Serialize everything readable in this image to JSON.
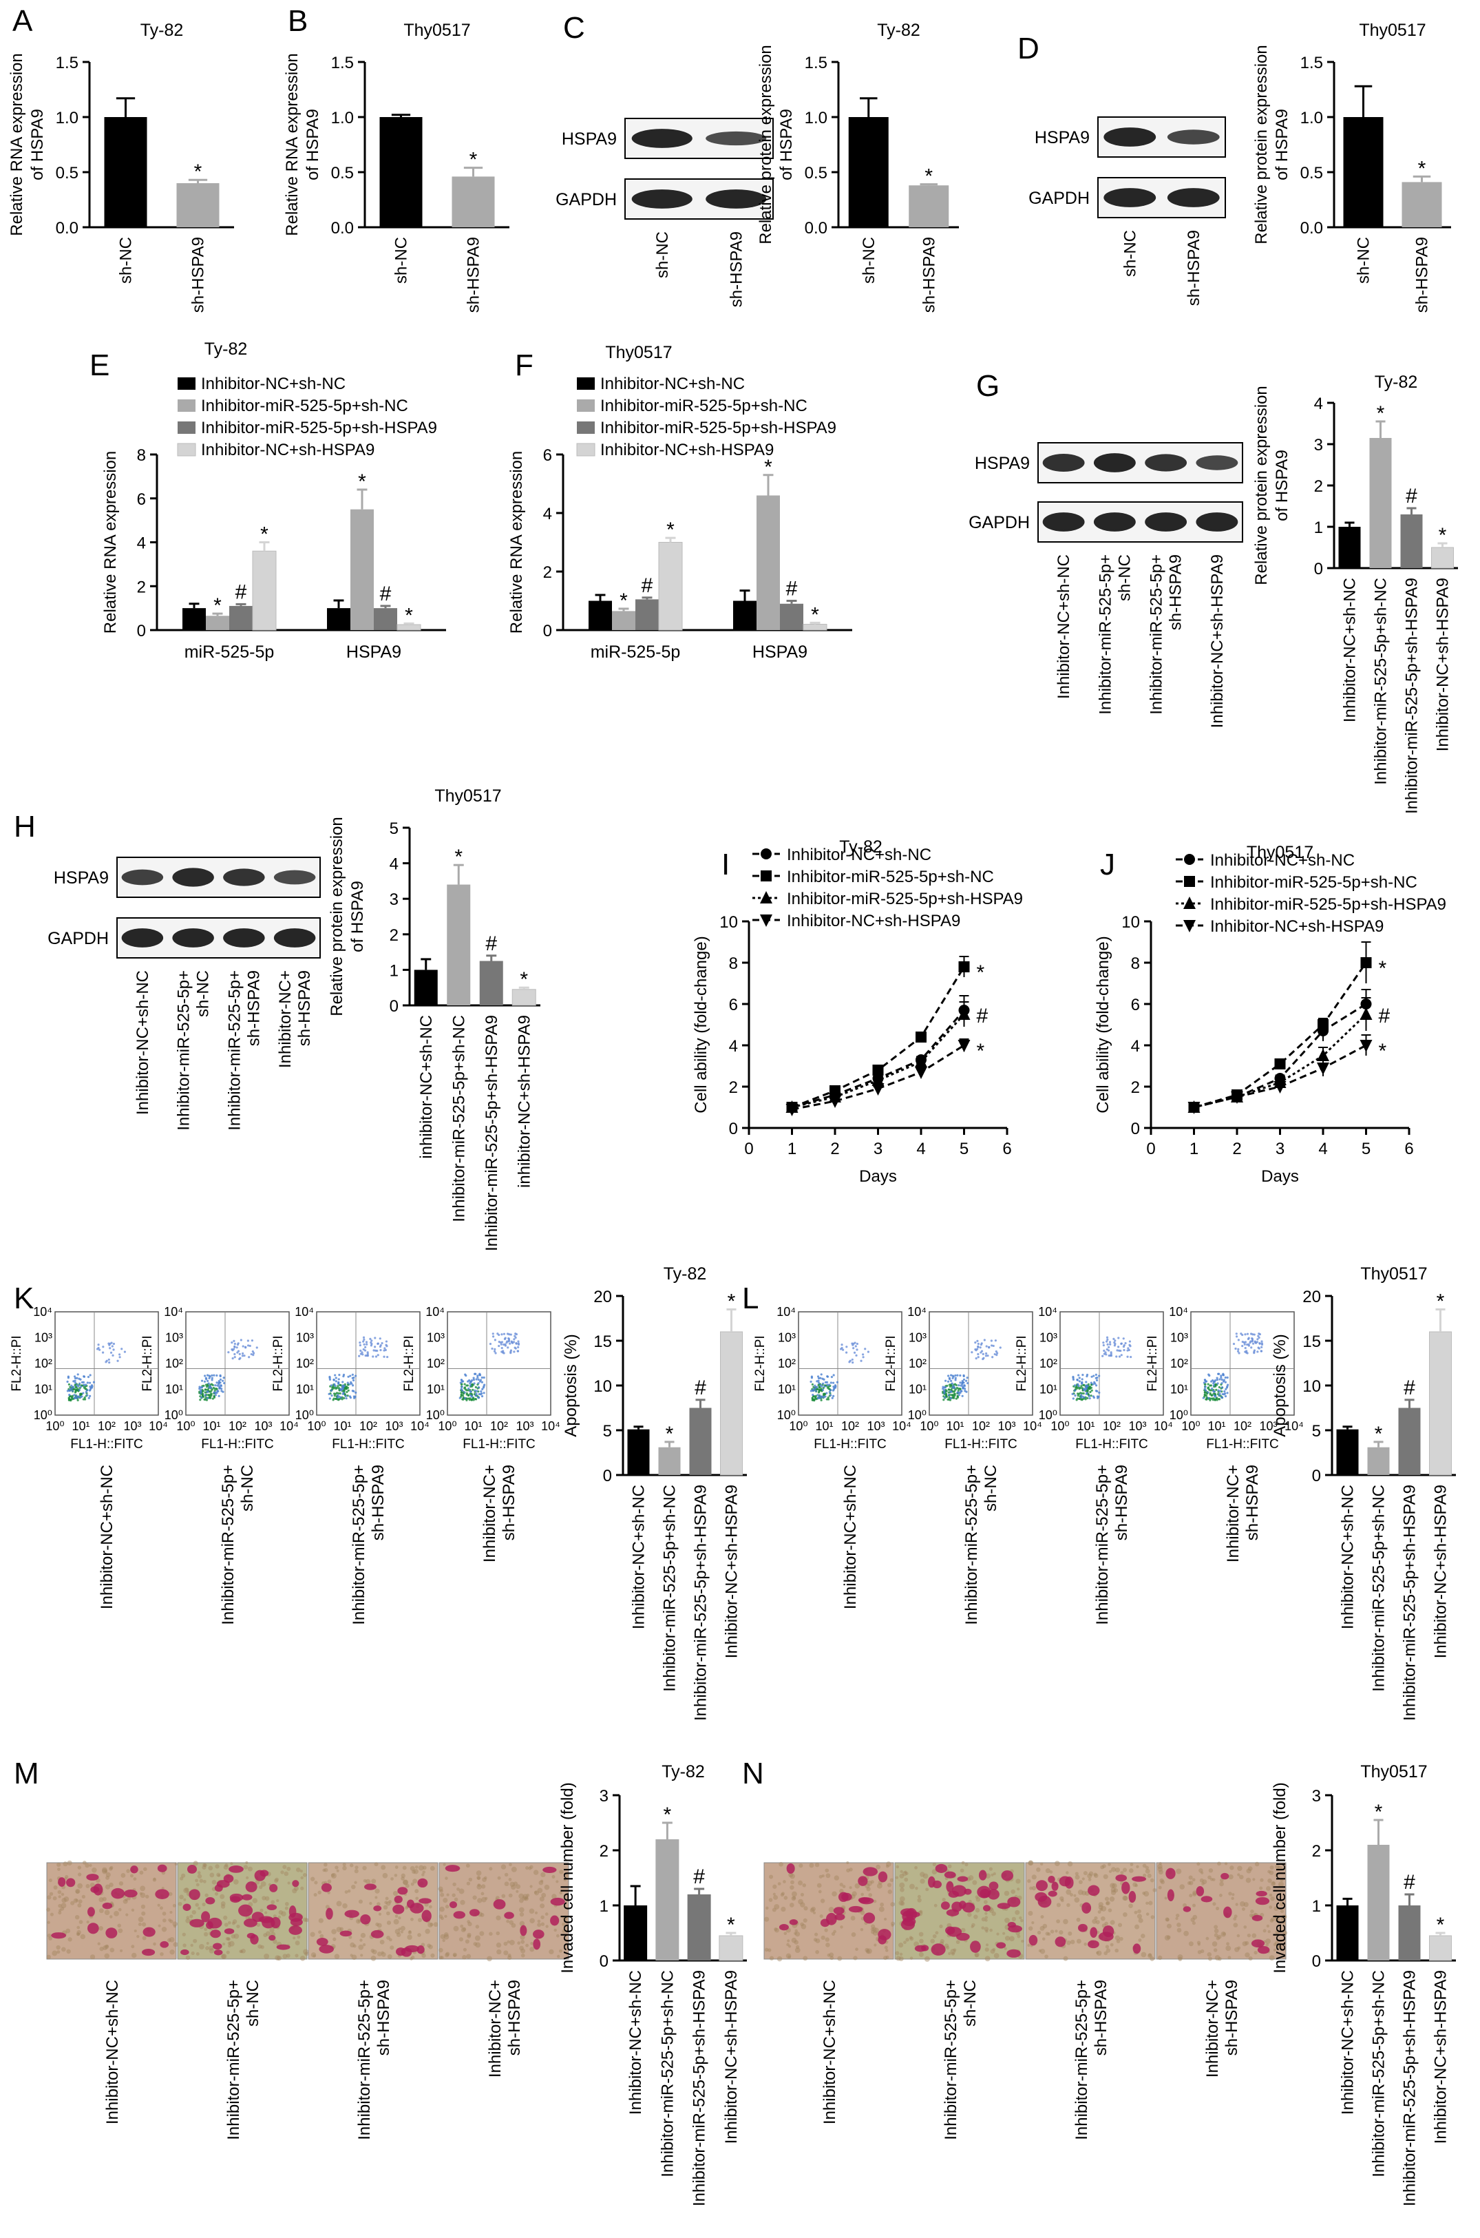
{
  "panel_letters": [
    "A",
    "B",
    "C",
    "D",
    "E",
    "F",
    "G",
    "H",
    "I",
    "J",
    "K",
    "L",
    "M",
    "N"
  ],
  "colors": {
    "black": "#000000",
    "light_gray": "#aaaaaa",
    "dark_gray": "#777777",
    "pale_gray": "#d4d4d4"
  },
  "blot_labels": {
    "hspa9": "HSPA9",
    "gapdh": "GAPDH"
  },
  "flow_axis": {
    "x": "FL1-H::FITC",
    "y": "FL2-H::PI"
  },
  "chart_data": [
    {
      "id": "A",
      "type": "bar",
      "title": "Ty-82",
      "ylabel": "Relative RNA expression of HSPA9",
      "ylim": [
        0,
        1.5
      ],
      "yticks": [
        "0.0",
        "0.5",
        "1.0",
        "1.5"
      ],
      "categories": [
        "sh-NC",
        "sh-HSPA9"
      ],
      "values": [
        1.0,
        0.4
      ],
      "errors": [
        0.17,
        0.03
      ],
      "marks": [
        "",
        "*"
      ]
    },
    {
      "id": "B",
      "type": "bar",
      "title": "Thy0517",
      "ylabel": "Relative RNA expression of HSPA9",
      "ylim": [
        0,
        1.5
      ],
      "yticks": [
        "0.0",
        "0.5",
        "1.0",
        "1.5"
      ],
      "categories": [
        "sh-NC",
        "sh-HSPA9"
      ],
      "values": [
        1.0,
        0.46
      ],
      "errors": [
        0.02,
        0.08
      ],
      "marks": [
        "",
        "*"
      ]
    },
    {
      "id": "C",
      "type": "bar",
      "title": "Ty-82",
      "ylabel": "Relative protein expression of HSPA9",
      "ylim": [
        0,
        1.5
      ],
      "yticks": [
        "0.0",
        "0.5",
        "1.0",
        "1.5"
      ],
      "categories": [
        "sh-NC",
        "sh-HSPA9"
      ],
      "values": [
        1.0,
        0.38
      ],
      "errors": [
        0.17,
        0.01
      ],
      "marks": [
        "",
        "*"
      ]
    },
    {
      "id": "D",
      "type": "bar",
      "title": "Thy0517",
      "ylabel": "Relative protein expression of HSPA9",
      "ylim": [
        0,
        1.5
      ],
      "yticks": [
        "0.0",
        "0.5",
        "1.0",
        "1.5"
      ],
      "categories": [
        "sh-NC",
        "sh-HSPA9"
      ],
      "values": [
        1.0,
        0.41
      ],
      "errors": [
        0.28,
        0.05
      ],
      "marks": [
        "",
        "*"
      ]
    },
    {
      "id": "E",
      "type": "bar",
      "title": "Ty-82",
      "ylabel": "Relative RNA expression",
      "ylim": [
        0,
        8
      ],
      "yticks": [
        "0",
        "2",
        "4",
        "6",
        "8"
      ],
      "categories": [
        "miR-525-5p",
        "HSPA9"
      ],
      "series": [
        {
          "name": "Inhibitor-NC+sh-NC",
          "values": [
            1.0,
            1.0
          ],
          "errors": [
            0.2,
            0.35
          ],
          "marks": [
            "",
            ""
          ]
        },
        {
          "name": "Inhibitor-miR-525-5p+sh-NC",
          "values": [
            0.65,
            5.5
          ],
          "errors": [
            0.1,
            0.9
          ],
          "marks": [
            "*",
            "*"
          ]
        },
        {
          "name": "Inhibitor-miR-525-5p+sh-HSPA9",
          "values": [
            1.1,
            1.0
          ],
          "errors": [
            0.08,
            0.1
          ],
          "marks": [
            "#",
            "#"
          ]
        },
        {
          "name": "Inhibitor-NC+sh-HSPA9",
          "values": [
            3.6,
            0.25
          ],
          "errors": [
            0.4,
            0.05
          ],
          "marks": [
            "*",
            "*"
          ]
        }
      ]
    },
    {
      "id": "F",
      "type": "bar",
      "title": "Thy0517",
      "ylabel": "Relative RNA expression",
      "ylim": [
        0,
        6
      ],
      "yticks": [
        "0",
        "2",
        "4",
        "6"
      ],
      "categories": [
        "miR-525-5p",
        "HSPA9"
      ],
      "series": [
        {
          "name": "Inhibitor-NC+sh-NC",
          "values": [
            1.0,
            1.0
          ],
          "errors": [
            0.2,
            0.35
          ],
          "marks": [
            "",
            ""
          ]
        },
        {
          "name": "Inhibitor-miR-525-5p+sh-NC",
          "values": [
            0.65,
            4.6
          ],
          "errors": [
            0.08,
            0.7
          ],
          "marks": [
            "*",
            "*"
          ]
        },
        {
          "name": "Inhibitor-miR-525-5p+sh-HSPA9",
          "values": [
            1.05,
            0.9
          ],
          "errors": [
            0.06,
            0.1
          ],
          "marks": [
            "#",
            "#"
          ]
        },
        {
          "name": "Inhibitor-NC+sh-HSPA9",
          "values": [
            3.0,
            0.2
          ],
          "errors": [
            0.15,
            0.05
          ],
          "marks": [
            "*",
            "*"
          ]
        }
      ]
    },
    {
      "id": "G",
      "type": "bar",
      "title": "Ty-82",
      "ylabel": "Relative protein expression of HSPA9",
      "ylim": [
        0,
        4
      ],
      "yticks": [
        "0",
        "1",
        "2",
        "3",
        "4"
      ],
      "categories": [
        "Inhibitor-NC+sh-NC",
        "Inhibitor-miR-525-5p+sh-NC",
        "Inhibitor-miR-525-5p+sh-HSPA9",
        "Inhibitor-NC+sh-HSPA9"
      ],
      "values": [
        1.0,
        3.15,
        1.3,
        0.5
      ],
      "errors": [
        0.1,
        0.4,
        0.15,
        0.1
      ],
      "marks": [
        "",
        "*",
        "#",
        "*"
      ]
    },
    {
      "id": "H",
      "type": "bar",
      "title": "Thy0517",
      "ylabel": "Relative protein expression of HSPA9",
      "ylim": [
        0,
        5
      ],
      "yticks": [
        "0",
        "1",
        "2",
        "3",
        "4",
        "5"
      ],
      "categories": [
        "inhibitor-NC+sh-NC",
        "Inhibitor-miR-525-5p+sh-NC",
        "Inhibitor-miR-525-5p+sh-HSPA9",
        "inhibitor-NC+sh-HSPA9"
      ],
      "values": [
        1.0,
        3.4,
        1.25,
        0.45
      ],
      "errors": [
        0.3,
        0.55,
        0.15,
        0.05
      ],
      "marks": [
        "",
        "*",
        "#",
        "*"
      ]
    },
    {
      "id": "I",
      "type": "line",
      "title": "Ty-82",
      "xlabel": "Days",
      "ylabel": "Cell ability (fold-change)",
      "xlim": [
        0,
        6
      ],
      "ylim": [
        0,
        10
      ],
      "xticks": [
        "0",
        "1",
        "2",
        "3",
        "4",
        "5",
        "6"
      ],
      "yticks": [
        "0",
        "2",
        "4",
        "6",
        "8",
        "10"
      ],
      "x": [
        1,
        2,
        3,
        4,
        5
      ],
      "series": [
        {
          "name": "Inhibitor-NC+sh-NC",
          "marker": "circle",
          "values": [
            1.0,
            1.6,
            2.4,
            3.3,
            5.7
          ],
          "errors": [
            0.05,
            0.1,
            0.1,
            0.15,
            0.7
          ],
          "end_mark": ""
        },
        {
          "name": "Inhibitor-miR-525-5p+sh-NC",
          "marker": "square",
          "values": [
            1.0,
            1.8,
            2.8,
            4.4,
            7.8
          ],
          "errors": [
            0.05,
            0.1,
            0.1,
            0.15,
            0.5
          ],
          "end_mark": "*"
        },
        {
          "name": "Inhibitor-miR-525-5p+sh-HSPA9",
          "marker": "triangle-up",
          "values": [
            1.0,
            1.5,
            2.3,
            3.2,
            5.5
          ],
          "errors": [
            0.05,
            0.1,
            0.1,
            0.15,
            0.6
          ],
          "end_mark": "#"
        },
        {
          "name": "Inhibitor-NC+sh-HSPA9",
          "marker": "triangle-down",
          "values": [
            0.9,
            1.3,
            1.9,
            2.7,
            4.0
          ],
          "errors": [
            0.05,
            0.1,
            0.1,
            0.15,
            0.3
          ],
          "end_mark": "*"
        }
      ]
    },
    {
      "id": "J",
      "type": "line",
      "title": "Thy0517",
      "xlabel": "Days",
      "ylabel": "Cell ability (fold-change)",
      "xlim": [
        0,
        6
      ],
      "ylim": [
        0,
        10
      ],
      "xticks": [
        "0",
        "1",
        "2",
        "3",
        "4",
        "5",
        "6"
      ],
      "yticks": [
        "0",
        "2",
        "4",
        "6",
        "8",
        "10"
      ],
      "x": [
        1,
        2,
        3,
        4,
        5
      ],
      "series": [
        {
          "name": "Inhibitor-NC+sh-NC",
          "marker": "circle",
          "values": [
            1.0,
            1.5,
            2.4,
            4.7,
            6.0
          ],
          "errors": [
            0.05,
            0.1,
            0.15,
            0.5,
            0.7
          ],
          "end_mark": ""
        },
        {
          "name": "Inhibitor-miR-525-5p+sh-NC",
          "marker": "square",
          "values": [
            1.0,
            1.6,
            3.1,
            5.0,
            8.0
          ],
          "errors": [
            0.05,
            0.1,
            0.15,
            0.3,
            1.0
          ],
          "end_mark": "*"
        },
        {
          "name": "Inhibitor-miR-525-5p+sh-HSPA9",
          "marker": "triangle-up",
          "values": [
            1.0,
            1.5,
            2.2,
            3.5,
            5.5
          ],
          "errors": [
            0.05,
            0.1,
            0.15,
            0.4,
            0.8
          ],
          "end_mark": "#"
        },
        {
          "name": "Inhibitor-NC+sh-HSPA9",
          "marker": "triangle-down",
          "values": [
            1.0,
            1.5,
            2.0,
            2.9,
            4.0
          ],
          "errors": [
            0.05,
            0.1,
            0.15,
            0.4,
            0.5
          ],
          "end_mark": "*"
        }
      ]
    },
    {
      "id": "K",
      "type": "bar",
      "title": "Ty-82",
      "ylabel": "Apoptosis (%)",
      "ylim": [
        0,
        20
      ],
      "yticks": [
        "0",
        "5",
        "10",
        "15",
        "20"
      ],
      "categories": [
        "Inhibitor-NC+sh-NC",
        "Inhibitor-miR-525-5p+sh-NC",
        "Inhibitor-miR-525-5p+sh-HSPA9",
        "Inhibitor-NC+sh-HSPA9"
      ],
      "values": [
        5.1,
        3.1,
        7.5,
        16.0
      ],
      "errors": [
        0.3,
        0.6,
        0.9,
        2.5
      ],
      "marks": [
        "",
        "*",
        "#",
        "*"
      ]
    },
    {
      "id": "L",
      "type": "bar",
      "title": "Thy0517",
      "ylabel": "Apoptosis (%)",
      "ylim": [
        0,
        20
      ],
      "yticks": [
        "0",
        "5",
        "10",
        "15",
        "20"
      ],
      "categories": [
        "Inhibitor-NC+sh-NC",
        "Inhibitor-miR-525-5p+sh-NC",
        "Inhibitor-miR-525-5p+sh-HSPA9",
        "Inhibitor-NC+sh-HSPA9"
      ],
      "values": [
        5.1,
        3.1,
        7.5,
        16.0
      ],
      "errors": [
        0.3,
        0.6,
        0.9,
        2.5
      ],
      "marks": [
        "",
        "*",
        "#",
        "*"
      ]
    },
    {
      "id": "M",
      "type": "bar",
      "title": "Ty-82",
      "ylabel": "Invaded cell number (fold)",
      "ylim": [
        0,
        3
      ],
      "yticks": [
        "0",
        "1",
        "2",
        "3"
      ],
      "categories": [
        "Inhibitor-NC+sh-NC",
        "Inhibitor-miR-525-5p+sh-NC",
        "Inhibitor-miR-525-5p+sh-HSPA9",
        "Inhibitor-NC+sh-HSPA9"
      ],
      "values": [
        1.0,
        2.2,
        1.2,
        0.45
      ],
      "errors": [
        0.35,
        0.3,
        0.1,
        0.05
      ],
      "marks": [
        "",
        "*",
        "#",
        "*"
      ]
    },
    {
      "id": "N",
      "type": "bar",
      "title": "Thy0517",
      "ylabel": "Invaded cell number (fold)",
      "ylim": [
        0,
        3
      ],
      "yticks": [
        "0",
        "1",
        "2",
        "3"
      ],
      "categories": [
        "Inhibitor-NC+sh-NC",
        "Inhibitor-miR-525-5p+sh-NC",
        "Inhibitor-miR-525-5p+sh-HSPA9",
        "Inhibitor-NC+sh-HSPA9"
      ],
      "values": [
        1.0,
        2.1,
        1.0,
        0.45
      ],
      "errors": [
        0.12,
        0.45,
        0.2,
        0.05
      ],
      "marks": [
        "",
        "*",
        "#",
        "*"
      ]
    }
  ],
  "blots": [
    {
      "id": "C",
      "lanes": [
        "sh-NC",
        "sh-HSPA9"
      ],
      "hspa9": [
        1.0,
        0.4
      ],
      "gapdh": [
        1.0,
        1.0
      ]
    },
    {
      "id": "D",
      "lanes": [
        "sh-NC",
        "sh-HSPA9"
      ],
      "hspa9": [
        1.0,
        0.5
      ],
      "gapdh": [
        1.0,
        1.0
      ]
    },
    {
      "id": "G",
      "lanes": [
        "Inhibitor-NC+sh-NC",
        "Inhibitor-miR-525-5p+ sh-NC",
        "Inhibitor-miR-525-5p+ sh-HSPA9",
        "Inhibitor-NC+sh-HSPA9"
      ],
      "hspa9": [
        0.85,
        1.0,
        0.8,
        0.5
      ],
      "gapdh": [
        1.0,
        1.0,
        1.0,
        1.0
      ]
    },
    {
      "id": "H",
      "lanes": [
        "Inhibitor-NC+sh-NC",
        "Inhibitor-miR-525-5p+ sh-NC",
        "Inhibitor-miR-525-5p+ sh-HSPA9",
        "Inhibitor-NC+ sh-HSPA9"
      ],
      "hspa9": [
        0.6,
        0.95,
        0.8,
        0.45
      ],
      "gapdh": [
        1.0,
        1.0,
        1.0,
        1.0
      ]
    }
  ],
  "flow_panels": [
    {
      "id": "K",
      "labels": [
        "Inhibitor-NC+sh-NC",
        "Inhibitor-miR-525-5p+ sh-NC",
        "Inhibitor-miR-525-5p+ sh-HSPA9",
        "Inhibitor-NC+ sh-HSPA9"
      ]
    },
    {
      "id": "L",
      "labels": [
        "Inhibitor-NC+sh-NC",
        "Inhibitor-miR-525-5p+ sh-NC",
        "Inhibitor-miR-525-5p+ sh-HSPA9",
        "Inhibitor-NC+ sh-HSPA9"
      ]
    }
  ],
  "invasion_panels": [
    {
      "id": "M",
      "labels": [
        "Inhibitor-NC+sh-NC",
        "Inhibitor-miR-525-5p+ sh-NC",
        "Inhibitor-miR-525-5p+ sh-HSPA9",
        "Inhibitor-NC+ sh-HSPA9"
      ]
    },
    {
      "id": "N",
      "labels": [
        "Inhibitor-NC+sh-NC",
        "Inhibitor-miR-525-5p+ sh-NC",
        "Inhibitor-miR-525-5p+ sh-HSPA9",
        "Inhibitor-NC+ sh-HSPA9"
      ]
    }
  ]
}
